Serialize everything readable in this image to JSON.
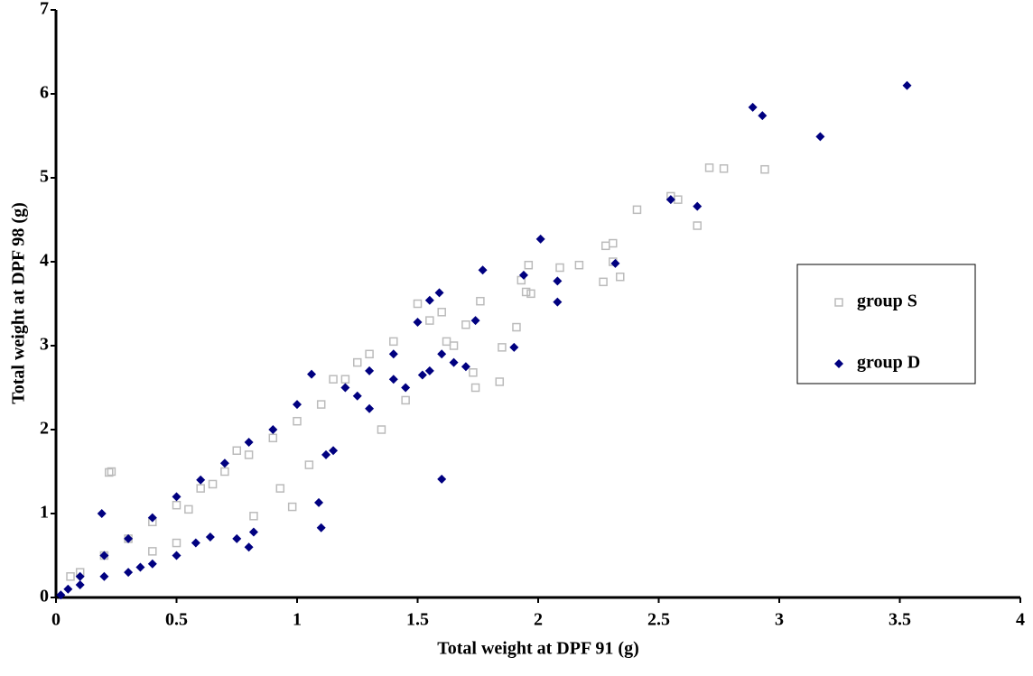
{
  "chart_data": {
    "type": "scatter",
    "xlabel": "Total weight at DPF 91 (g)",
    "ylabel": "Total weight at DPF 98 (g)",
    "xlim": [
      0,
      4
    ],
    "xticks": [
      0,
      0.5,
      1,
      1.5,
      2,
      2.5,
      3,
      3.5,
      4
    ],
    "ylim": [
      0,
      7
    ],
    "yticks": [
      0,
      1,
      2,
      3,
      4,
      5,
      6,
      7
    ],
    "grid": false,
    "legend": "right",
    "series": [
      {
        "name": "group S",
        "color": "#bbbbbb",
        "marker": "square",
        "x": [
          2.71,
          2.77,
          2.94,
          2.55,
          2.58,
          2.66,
          2.41,
          2.28,
          2.31,
          2.27,
          2.34,
          2.31,
          2.17,
          2.09,
          1.96,
          1.93,
          1.95,
          1.97,
          1.91,
          1.85,
          1.84,
          1.74,
          1.73,
          1.76,
          0.22,
          0.23,
          0.98,
          1.5,
          1.4,
          1.3,
          1.2,
          1.1,
          1.0,
          0.9,
          0.8,
          0.7,
          0.6,
          0.5,
          0.4,
          0.3,
          0.2,
          0.1,
          0.06,
          1.35,
          1.45,
          1.65,
          1.55,
          1.6,
          0.82,
          0.5,
          0.4,
          1.05,
          0.93,
          1.25,
          1.15,
          0.75,
          0.65,
          0.55,
          1.7,
          1.62
        ],
        "values": [
          5.12,
          5.11,
          5.1,
          4.78,
          4.74,
          4.43,
          4.62,
          4.19,
          4.22,
          3.76,
          3.82,
          4.0,
          3.96,
          3.93,
          3.96,
          3.78,
          3.64,
          3.62,
          3.22,
          2.98,
          2.57,
          2.5,
          2.68,
          3.53,
          1.49,
          1.5,
          1.08,
          3.5,
          3.05,
          2.9,
          2.6,
          2.3,
          2.1,
          1.9,
          1.7,
          1.5,
          1.3,
          1.1,
          0.9,
          0.7,
          0.5,
          0.3,
          0.25,
          2.0,
          2.35,
          3.0,
          3.3,
          3.4,
          0.97,
          0.65,
          0.55,
          1.58,
          1.3,
          2.8,
          2.6,
          1.75,
          1.35,
          1.05,
          3.25,
          3.05
        ]
      },
      {
        "name": "group D",
        "color": "#000080",
        "marker": "diamond",
        "x": [
          3.53,
          2.89,
          2.93,
          3.17,
          2.55,
          2.66,
          2.01,
          2.32,
          1.77,
          1.94,
          2.08,
          2.08,
          1.59,
          1.55,
          1.74,
          1.5,
          1.9,
          1.6,
          1.09,
          1.1,
          0.8,
          0.82,
          0.75,
          0.64,
          0.58,
          0.19,
          1.06,
          1.0,
          0.9,
          0.8,
          0.7,
          0.6,
          0.5,
          0.4,
          0.3,
          0.2,
          0.1,
          0.05,
          0.02,
          0.1,
          0.2,
          0.3,
          0.4,
          0.5,
          0.35,
          1.2,
          1.3,
          1.4,
          1.45,
          1.55,
          1.65,
          1.15,
          1.12,
          1.3,
          1.25,
          1.4,
          1.6,
          1.7,
          1.52
        ],
        "values": [
          6.1,
          5.84,
          5.74,
          5.49,
          4.74,
          4.66,
          4.27,
          3.98,
          3.9,
          3.84,
          3.77,
          3.52,
          3.63,
          3.54,
          3.3,
          3.28,
          2.98,
          1.41,
          1.13,
          0.83,
          0.6,
          0.78,
          0.7,
          0.72,
          0.65,
          1.0,
          2.66,
          2.3,
          2.0,
          1.85,
          1.6,
          1.4,
          1.2,
          0.95,
          0.7,
          0.5,
          0.25,
          0.1,
          0.03,
          0.15,
          0.25,
          0.3,
          0.4,
          0.5,
          0.36,
          2.5,
          2.7,
          2.9,
          2.5,
          2.7,
          2.8,
          1.75,
          1.7,
          2.25,
          2.4,
          2.6,
          2.9,
          2.75,
          2.65
        ]
      }
    ]
  }
}
